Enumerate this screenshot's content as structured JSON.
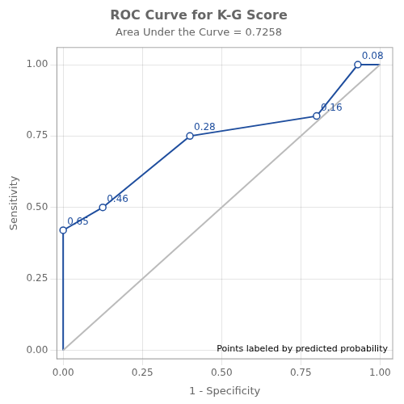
{
  "chart_data": {
    "type": "line",
    "title": "ROC Curve for K-G Score",
    "subtitle": "Area Under the Curve = 0.7258",
    "xlabel": "1 - Specificity",
    "ylabel": "Sensitivity",
    "annotation": "Points labeled by predicted probability",
    "series": [
      {
        "x": [
          0,
          1
        ],
        "values": [
          0,
          1
        ],
        "color": "#BBBBBB"
      },
      {
        "x": [
          0.0,
          0.0,
          0.125,
          0.4,
          0.8,
          0.93,
          1.0
        ],
        "values": [
          0.0,
          0.42,
          0.5,
          0.75,
          0.82,
          1.0,
          1.0
        ],
        "color": "#1F4E9E",
        "marker": "circle",
        "point_labels": [
          null,
          "0.65",
          "0.46",
          "0.28",
          "0.16",
          "0.08",
          null
        ]
      }
    ],
    "xlim": [
      -0.02,
      1.04
    ],
    "ylim": [
      -0.03,
      1.06
    ],
    "xticks": [
      {
        "value": 0.0,
        "label": "0.00"
      },
      {
        "value": 0.25,
        "label": "0.25"
      },
      {
        "value": 0.5,
        "label": "0.50"
      },
      {
        "value": 0.75,
        "label": "0.75"
      },
      {
        "value": 1.0,
        "label": "1.00"
      }
    ],
    "yticks": [
      {
        "value": 0.0,
        "label": "0.00"
      },
      {
        "value": 0.25,
        "label": "0.25"
      },
      {
        "value": 0.5,
        "label": "0.50"
      },
      {
        "value": 0.75,
        "label": "0.75"
      },
      {
        "value": 1.0,
        "label": "1.00"
      }
    ],
    "grid": true
  }
}
